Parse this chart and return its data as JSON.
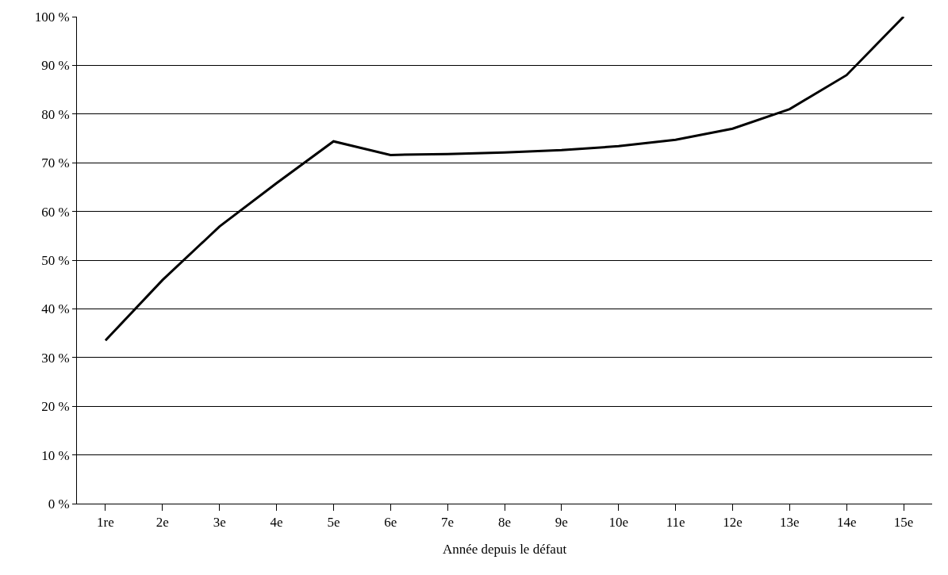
{
  "chart_data": {
    "type": "line",
    "xlabel": "Année depuis le défaut",
    "categories": [
      "1re",
      "2e",
      "3e",
      "4e",
      "5e",
      "6e",
      "7e",
      "8e",
      "9e",
      "10e",
      "11e",
      "12e",
      "13e",
      "14e",
      "15e"
    ],
    "series": [
      {
        "color": "#000000",
        "values": [
          33.5,
          45.9,
          56.9,
          65.8,
          74.4,
          71.6,
          71.8,
          72.1,
          72.6,
          73.4,
          74.7,
          77.0,
          81.0,
          88.0,
          100
        ]
      }
    ],
    "ylim": [
      0,
      100
    ],
    "yticks": [
      {
        "value": 0,
        "label": "0 %"
      },
      {
        "value": 10,
        "label": "10 %"
      },
      {
        "value": 20,
        "label": "20 %"
      },
      {
        "value": 30,
        "label": "30 %"
      },
      {
        "value": 40,
        "label": "40 %"
      },
      {
        "value": 50,
        "label": "50 %"
      },
      {
        "value": 60,
        "label": "60 %"
      },
      {
        "value": 70,
        "label": "70 %"
      },
      {
        "value": 80,
        "label": "80 %"
      },
      {
        "value": 90,
        "label": "90 %"
      },
      {
        "value": 100,
        "label": "100 %"
      }
    ],
    "grid": "y",
    "legend": false,
    "marker": "none",
    "line_style": "solid"
  }
}
